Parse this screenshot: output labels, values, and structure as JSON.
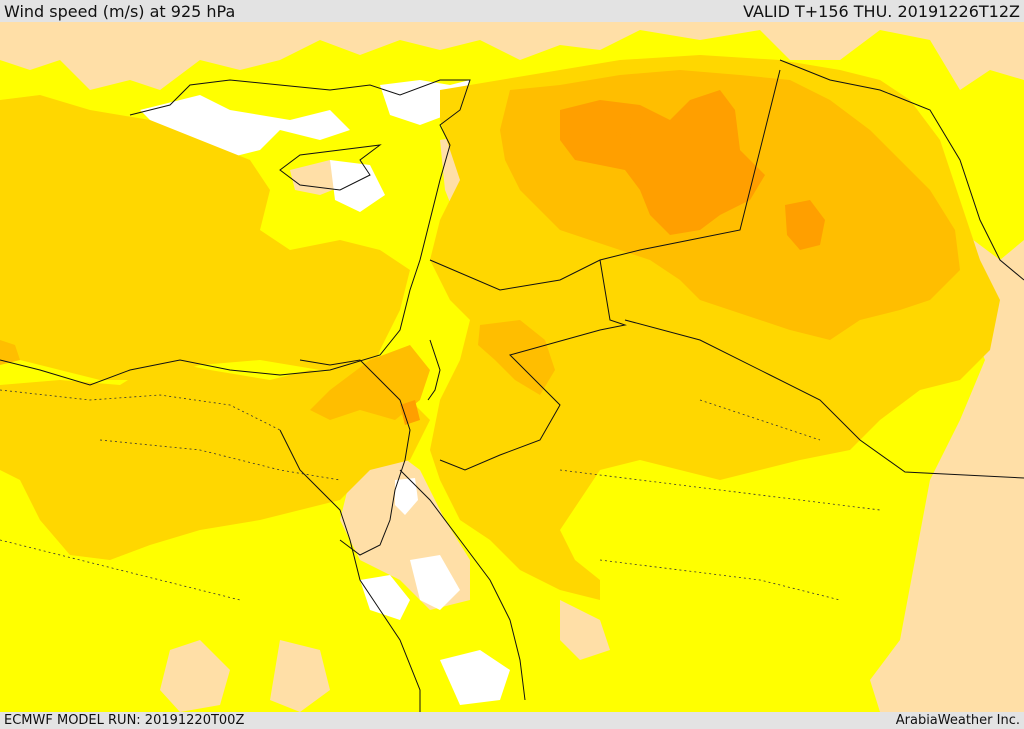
{
  "header": {
    "title": "Wind speed (m/s) at 925 hPa",
    "valid": "VALID T+156 THU. 20191226T12Z"
  },
  "footer": {
    "model_run": "ECMWF MODEL RUN: 20191220T00Z",
    "credit": "ArabiaWeather Inc."
  },
  "map": {
    "field": "wind speed",
    "level": "925 hPa",
    "colors": {
      "white": "#ffffff",
      "light_peach": "#ffdfa7",
      "yellow": "#ffff00",
      "gold": "#ffd700",
      "amber": "#ffbe00",
      "orange": "#ff9f00",
      "border_line": "#111111"
    }
  }
}
